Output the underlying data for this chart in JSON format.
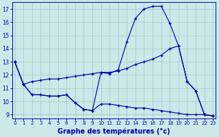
{
  "xlabel": "Graphe des températures (°c)",
  "bg_color": "#cce8e8",
  "line_color": "#0000aa",
  "grid_color": "#aacccc",
  "ylim": [
    8.7,
    17.5
  ],
  "xlim": [
    -0.3,
    23.3
  ],
  "yticks": [
    9,
    10,
    11,
    12,
    13,
    14,
    15,
    16,
    17
  ],
  "xticks": [
    0,
    1,
    2,
    3,
    4,
    5,
    6,
    7,
    8,
    9,
    10,
    11,
    12,
    13,
    14,
    15,
    16,
    17,
    18,
    19,
    20,
    21,
    22,
    23
  ],
  "curve1_x": [
    0,
    1,
    2,
    3,
    4,
    5,
    6,
    7,
    8,
    9,
    10,
    11,
    12,
    13,
    14,
    15,
    16,
    17,
    18,
    19,
    20,
    21,
    22,
    23
  ],
  "curve1_y": [
    13.0,
    11.3,
    10.5,
    10.5,
    10.4,
    10.4,
    10.5,
    9.9,
    9.4,
    9.3,
    12.2,
    12.1,
    12.4,
    14.5,
    16.3,
    17.0,
    17.2,
    17.2,
    15.9,
    14.2,
    11.5,
    10.8,
    9.0,
    8.9
  ],
  "curve2_x": [
    0,
    1,
    2,
    3,
    4,
    5,
    6,
    7,
    8,
    9,
    10,
    11,
    12,
    13,
    14,
    15,
    16,
    17,
    18,
    19,
    20,
    21,
    22,
    23
  ],
  "curve2_y": [
    13.0,
    11.3,
    11.5,
    11.6,
    11.7,
    11.7,
    11.8,
    11.9,
    12.0,
    12.1,
    12.2,
    12.2,
    12.3,
    12.5,
    12.8,
    13.0,
    13.2,
    13.5,
    14.0,
    14.2,
    11.5,
    10.8,
    9.0,
    8.9
  ],
  "curve3_x": [
    0,
    1,
    2,
    3,
    4,
    5,
    6,
    7,
    8,
    9,
    10,
    11,
    12,
    13,
    14,
    15,
    16,
    17,
    18,
    19,
    20,
    21,
    22,
    23
  ],
  "curve3_y": [
    13.0,
    11.3,
    10.5,
    10.5,
    10.4,
    10.4,
    10.5,
    9.9,
    9.4,
    9.3,
    9.8,
    9.8,
    9.7,
    9.6,
    9.5,
    9.5,
    9.4,
    9.3,
    9.2,
    9.1,
    9.0,
    9.0,
    9.0,
    8.9
  ]
}
